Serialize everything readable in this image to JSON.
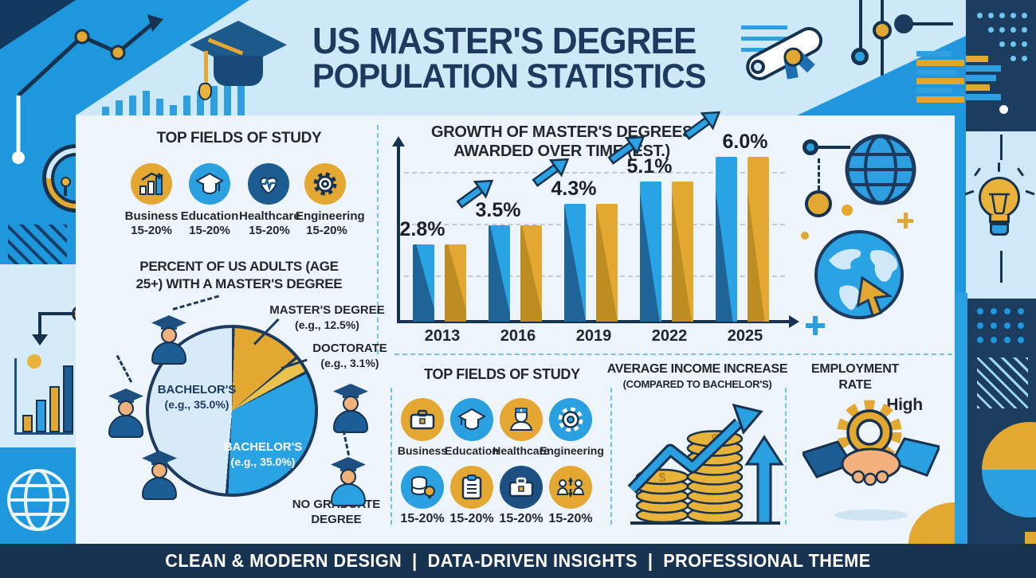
{
  "palette": {
    "bright_blue": "#1f97dc",
    "light_blue": "#cde9f7",
    "panel": "#edf5fa",
    "navy": "#1b3a5e",
    "deep_navy": "#16324f",
    "gold": "#e2a832",
    "bar_blue": "#2aa3e4",
    "bar_blue_dark": "#1e6496",
    "gold_dark": "#bd8d22",
    "doctorate_gold": "#e8c24d",
    "pie_light": "#d7eaf7"
  },
  "header": {
    "title_line1": "US MASTER'S DEGREE",
    "title_line2": "POPULATION STATISTICS"
  },
  "fields_top": {
    "title": "TOP FIELDS OF STUDY",
    "items": [
      {
        "label": "Business",
        "pct": "15-20%",
        "icon": "bar-chart-icon"
      },
      {
        "label": "Education",
        "pct": "15-20%",
        "icon": "graduation-cap-icon"
      },
      {
        "label": "Healthcare",
        "pct": "15-20%",
        "icon": "heart-pulse-icon"
      },
      {
        "label": "Engineering",
        "pct": "15-20%",
        "icon": "gear-icon"
      }
    ]
  },
  "pie_section": {
    "title_line1": "PERCENT OF US ADULTS (AGE",
    "title_line2": "25+) WITH A MASTER'S DEGREE",
    "labels": {
      "masters_1": "MASTER'S DEGREE",
      "masters_2": "(e.g., 12.5%)",
      "doctorate_1": "DOCTORATE",
      "doctorate_2": "(e.g., 3.1%)",
      "bachelors_left_1": "BACHELOR'S",
      "bachelors_left_2": "(e.g., 35.0%)",
      "bachelors_right_1": "BACHELOR'S",
      "bachelors_right_2": "(e.g., 35.0%)",
      "no_grad_1": "NO GRADUATE",
      "no_grad_2": "DEGREE"
    }
  },
  "growth_section": {
    "title_line1": "GROWTH OF MASTER'S DEGREES",
    "title_line2": "AWARDED OVER TIME (EST.)"
  },
  "fields_bottom": {
    "title": "TOP FIELDS OF STUDY",
    "row1": [
      {
        "label": "Business",
        "icon": "briefcase-icon"
      },
      {
        "label": "Education",
        "icon": "graduation-cap-icon"
      },
      {
        "label": "Healthcare",
        "icon": "nurse-icon"
      },
      {
        "label": "Engineering",
        "icon": "gear-icon"
      }
    ],
    "row2": [
      {
        "pct": "15-20%",
        "icon": "database-idea-icon"
      },
      {
        "pct": "15-20%",
        "icon": "clipboard-icon"
      },
      {
        "pct": "15-20%",
        "icon": "briefcase-icon"
      },
      {
        "pct": "15-20%",
        "icon": "people-arrows-icon"
      }
    ]
  },
  "income_section": {
    "title_line1": "AVERAGE INCOME INCREASE",
    "title_line2": "(COMPARED TO BACHELOR'S)"
  },
  "employment_section": {
    "title_line1": "EMPLOYMENT",
    "title_line2": "RATE",
    "level": "High"
  },
  "footer": {
    "text": "CLEAN & MODERN DESIGN  |  DATA-DRIVEN INSIGHTS  |  PROFESSIONAL THEME"
  },
  "chart_data": [
    {
      "type": "bar",
      "title": "GROWTH OF MASTER'S DEGREES AWARDED OVER TIME (EST.)",
      "categories": [
        "2013",
        "2016",
        "2019",
        "2022",
        "2025"
      ],
      "values": [
        2.8,
        3.5,
        4.3,
        5.1,
        6.0
      ],
      "value_labels": [
        "2.8%",
        "3.5%",
        "4.3%",
        "5.1%",
        "6.0%"
      ],
      "unit": "%",
      "ylim": [
        0,
        6.5
      ],
      "grid": "dashed horizontal",
      "bar_colors": [
        "#2aa3e4",
        "#e2a832"
      ],
      "note": "each year shown as a paired blue and gold bar with rising trend arrows between years"
    },
    {
      "type": "pie",
      "title": "PERCENT OF US ADULTS (AGE 25+) WITH A MASTER'S DEGREE",
      "slices": [
        {
          "label": "Master's Degree",
          "value": 12.5,
          "angle": 49.5,
          "color": "#e2a832"
        },
        {
          "label": "Doctorate",
          "value": 3.1,
          "angle": 12,
          "color": "#e8c24d"
        },
        {
          "label": "Bachelor's",
          "value": 35.0,
          "angle": 121,
          "color": "#2aa3e4"
        },
        {
          "label": "No Graduate Degree",
          "value": 35.0,
          "angle": 177.5,
          "color": "#d7eaf7"
        }
      ]
    }
  ]
}
